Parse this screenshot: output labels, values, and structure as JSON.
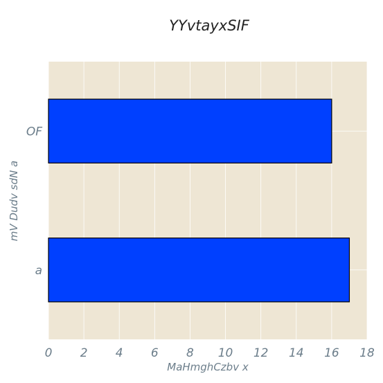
{
  "chart_data": {
    "type": "bar",
    "orientation": "horizontal",
    "title": "YYvtayxSIF",
    "xlabel": "MaHmghCzbv x",
    "ylabel": "mV Dudv sdN a",
    "categories": [
      "a",
      "OF"
    ],
    "values": [
      17,
      16
    ],
    "xlim": [
      0,
      18
    ],
    "xticks": [
      0,
      2,
      4,
      6,
      8,
      10,
      12,
      14,
      16,
      18
    ],
    "grid": true,
    "legend": "none",
    "colors": {
      "bar": "#0040ff",
      "bar_edge": "#000000",
      "plot_background": "#eee6d4",
      "grid": "#ffffff"
    }
  }
}
